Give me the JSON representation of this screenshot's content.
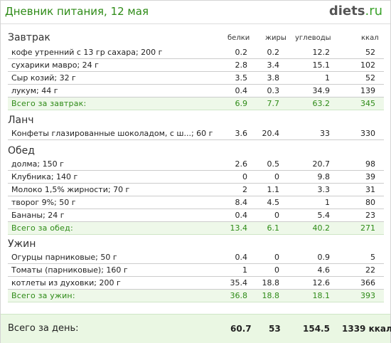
{
  "header": {
    "title": "Дневник питания, 12 мая",
    "logo_main": "diets",
    "logo_suffix": ".ru"
  },
  "columns": {
    "proteins": "белки",
    "fats": "жиры",
    "carbs": "углеводы",
    "kcal": "ккал"
  },
  "breakfast": {
    "title": "Завтрак",
    "items": [
      {
        "name": "кофе утренний  с 13 гр сахара; 200 г",
        "p": "0.2",
        "f": "0.2",
        "c": "12.2",
        "k": "52"
      },
      {
        "name": "сухарики мавро; 24 г",
        "p": "2.8",
        "f": "3.4",
        "c": "15.1",
        "k": "102"
      },
      {
        "name": "Сыр козий; 32 г",
        "p": "3.5",
        "f": "3.8",
        "c": "1",
        "k": "52"
      },
      {
        "name": "лукум; 44 г",
        "p": "0.4",
        "f": "0.3",
        "c": "34.9",
        "k": "139"
      }
    ],
    "total": {
      "name": "Всего за завтрак:",
      "p": "6.9",
      "f": "7.7",
      "c": "63.2",
      "k": "345"
    }
  },
  "lunch": {
    "title": "Ланч",
    "items": [
      {
        "name": "Конфеты глазированные шоколадом, с ш...; 60 г",
        "p": "3.6",
        "f": "20.4",
        "c": "33",
        "k": "330"
      }
    ]
  },
  "dinner": {
    "title": "Обед",
    "items": [
      {
        "name": "долма; 150 г",
        "p": "2.6",
        "f": "0.5",
        "c": "20.7",
        "k": "98"
      },
      {
        "name": "Клубника; 140 г",
        "p": "0",
        "f": "0",
        "c": "9.8",
        "k": "39"
      },
      {
        "name": "Молоко 1,5% жирности; 70 г",
        "p": "2",
        "f": "1.1",
        "c": "3.3",
        "k": "31"
      },
      {
        "name": "творог 9%; 50 г",
        "p": "8.4",
        "f": "4.5",
        "c": "1",
        "k": "80"
      },
      {
        "name": "Бананы; 24 г",
        "p": "0.4",
        "f": "0",
        "c": "5.4",
        "k": "23"
      }
    ],
    "total": {
      "name": "Всего за обед:",
      "p": "13.4",
      "f": "6.1",
      "c": "40.2",
      "k": "271"
    }
  },
  "supper": {
    "title": "Ужин",
    "items": [
      {
        "name": "Огурцы парниковые; 50 г",
        "p": "0.4",
        "f": "0",
        "c": "0.9",
        "k": "5"
      },
      {
        "name": "Томаты (парниковые); 160 г",
        "p": "1",
        "f": "0",
        "c": "4.6",
        "k": "22"
      },
      {
        "name": "котлеты из духовки; 200 г",
        "p": "35.4",
        "f": "18.8",
        "c": "12.6",
        "k": "366"
      }
    ],
    "total": {
      "name": "Всего за ужин:",
      "p": "36.8",
      "f": "18.8",
      "c": "18.1",
      "k": "393"
    }
  },
  "day_total": {
    "name": "Всего за день:",
    "p": "60.7",
    "f": "53",
    "c": "154.5",
    "k": "1339 ккал"
  },
  "colors": {
    "accent_green": "#2e8b17",
    "total_bg": "#eef8e9"
  }
}
